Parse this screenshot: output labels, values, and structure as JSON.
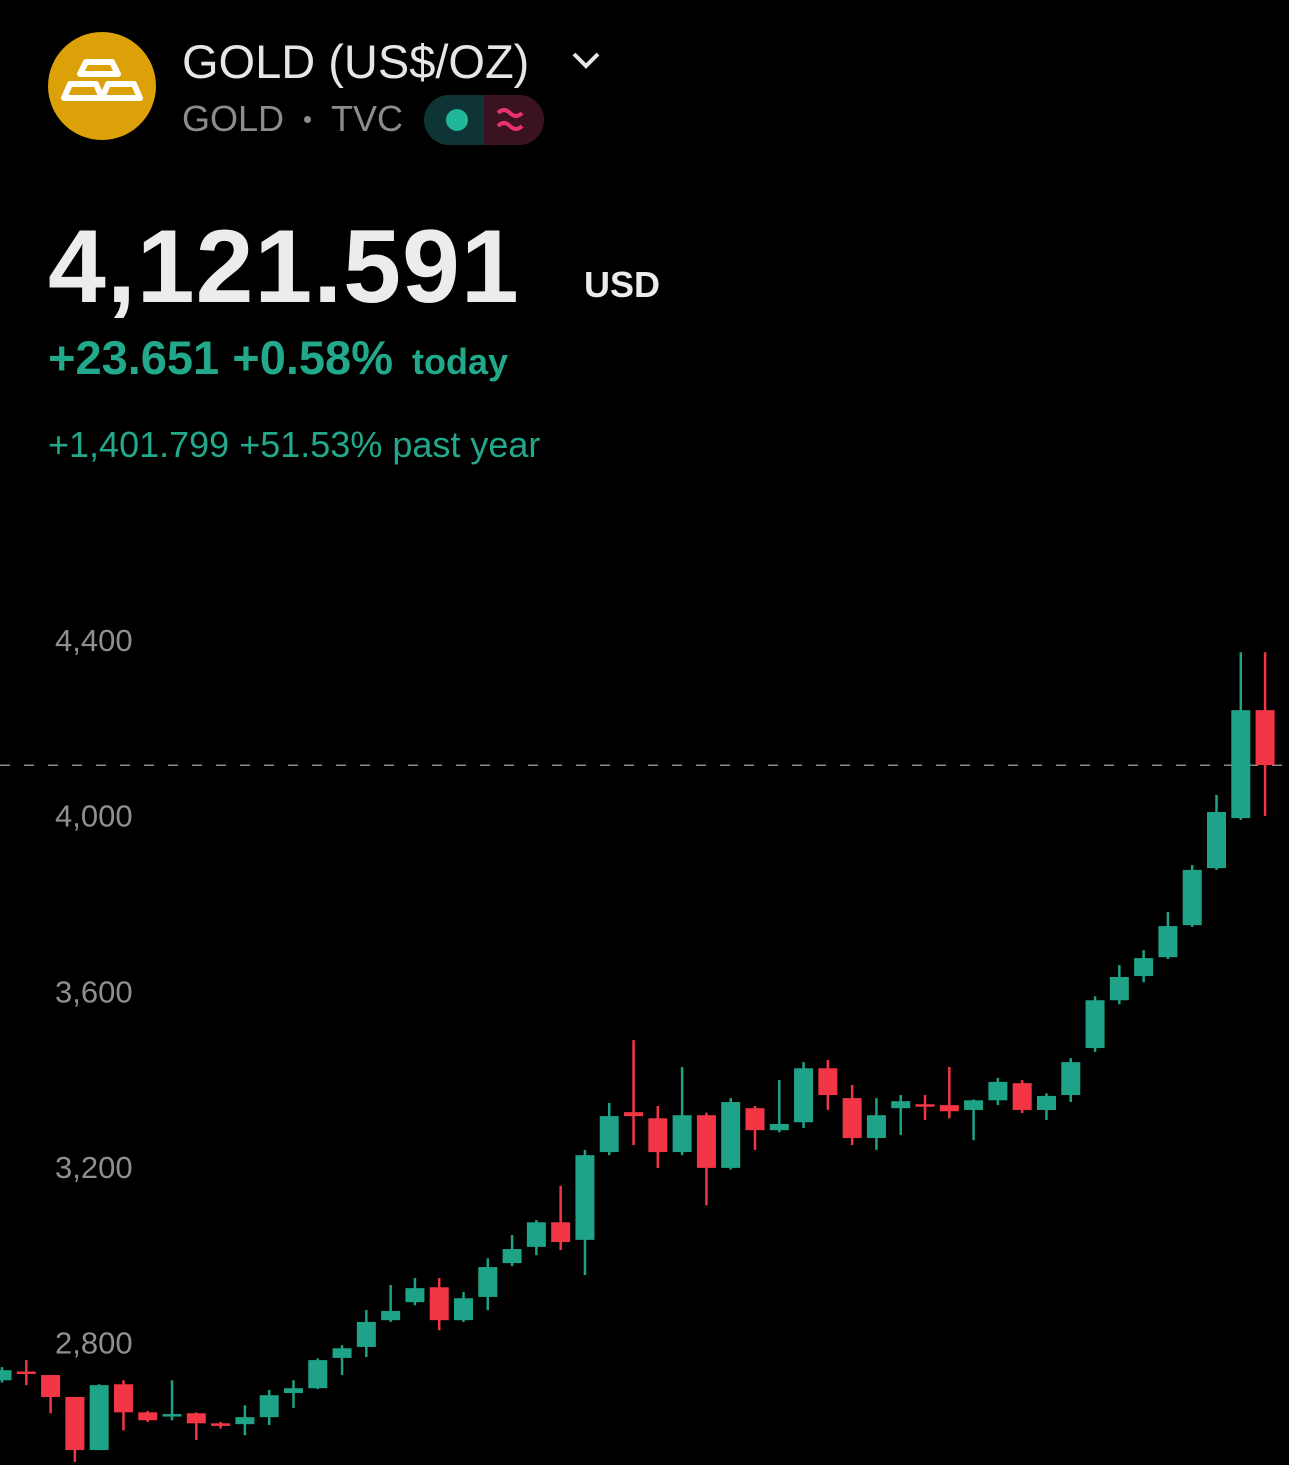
{
  "header": {
    "title": "GOLD (US$/OZ)",
    "symbol": "GOLD",
    "exchange": "TVC",
    "price": {
      "value": 4121.591,
      "label": "4,121.591"
    },
    "currency": "USD",
    "change": "+23.651",
    "change_percent": "+0.58%",
    "period": "today",
    "year_change": "+1,401.799",
    "year_change_percent": "+51.53%",
    "year_period": "past year"
  },
  "chart_data": {
    "type": "candlestick",
    "up_color": "#1fa388",
    "down_color": "#f23645",
    "open": [
      2720,
      2740,
      2732,
      2682,
      2561,
      2711,
      2647,
      2638,
      2645,
      2622,
      2620,
      2636,
      2691,
      2702,
      2771,
      2796,
      2857,
      2898,
      2932,
      2857,
      2910,
      2987,
      3024,
      3080,
      3040,
      3240,
      3331,
      3317,
      3240,
      3324,
      3204,
      3340,
      3290,
      3308,
      3431,
      3363,
      3272,
      3340,
      3349,
      3347,
      3336,
      3358,
      3397,
      3336,
      3370,
      3477,
      3586,
      3641,
      3684,
      3757,
      3887,
      4001,
      4247
    ],
    "high": [
      2750,
      2766,
      2732,
      2682,
      2711,
      2720,
      2650,
      2720,
      2647,
      2625,
      2663,
      2698,
      2720,
      2770,
      2800,
      2880,
      2937,
      2953,
      2953,
      2921,
      2998,
      3051,
      3085,
      3163,
      3245,
      3352,
      3495,
      3345,
      3434,
      3330,
      3363,
      3345,
      3404,
      3445,
      3450,
      3393,
      3363,
      3370,
      3370,
      3434,
      3360,
      3409,
      3404,
      3374,
      3454,
      3595,
      3666,
      3700,
      3787,
      3894,
      4054,
      4379,
      4379
    ],
    "low": [
      2715,
      2709,
      2645,
      2534,
      2561,
      2606,
      2625,
      2629,
      2584,
      2610,
      2595,
      2618,
      2657,
      2700,
      2732,
      2773,
      2853,
      2891,
      2834,
      2853,
      2880,
      2980,
      3005,
      3017,
      2960,
      3233,
      3256,
      3204,
      3233,
      3119,
      3200,
      3245,
      3285,
      3295,
      3336,
      3256,
      3245,
      3279,
      3313,
      3317,
      3267,
      3347,
      3329,
      3313,
      3354,
      3468,
      3577,
      3627,
      3680,
      3753,
      3883,
      3997,
      4006
    ],
    "close": [
      2743,
      2737,
      2682,
      2561,
      2709,
      2647,
      2629,
      2643,
      2622,
      2616,
      2636,
      2686,
      2702,
      2766,
      2793,
      2853,
      2878,
      2930,
      2857,
      2907,
      2978,
      3019,
      3080,
      3035,
      3233,
      3322,
      3322,
      3240,
      3324,
      3204,
      3354,
      3290,
      3304,
      3431,
      3370,
      3272,
      3324,
      3356,
      3345,
      3333,
      3358,
      3400,
      3336,
      3368,
      3445,
      3586,
      3639,
      3682,
      3755,
      3883,
      4015,
      4247,
      4122
    ],
    "ylim": [
      2527,
      4498
    ],
    "yticks": [
      {
        "value": 2800,
        "label": "2,800"
      },
      {
        "value": 3200,
        "label": "3,200"
      },
      {
        "value": 3600,
        "label": "3,600"
      },
      {
        "value": 4000,
        "label": "4,000"
      },
      {
        "value": 4400,
        "label": "4,400"
      }
    ]
  }
}
